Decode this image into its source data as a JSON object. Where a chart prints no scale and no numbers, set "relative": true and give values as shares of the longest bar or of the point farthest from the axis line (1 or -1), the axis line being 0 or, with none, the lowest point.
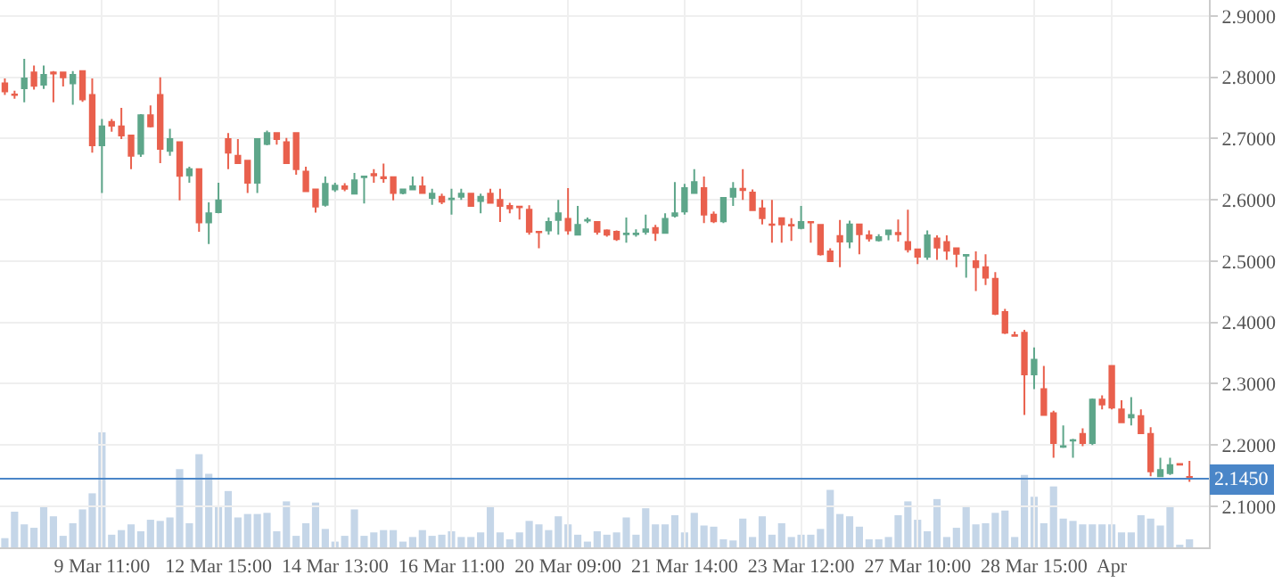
{
  "chart_data": [
    {
      "type": "candlestick",
      "grid": true,
      "categories": [
        null,
        null,
        null,
        null,
        null,
        null,
        null,
        null,
        null,
        null,
        "9 Mar 11:00",
        null,
        null,
        null,
        null,
        null,
        null,
        null,
        null,
        null,
        null,
        null,
        "12 Mar 15:00",
        null,
        null,
        null,
        null,
        null,
        null,
        null,
        null,
        null,
        null,
        null,
        "14 Mar 13:00",
        null,
        null,
        null,
        null,
        null,
        null,
        null,
        null,
        null,
        null,
        null,
        "16 Mar 11:00",
        null,
        null,
        null,
        null,
        null,
        null,
        null,
        null,
        null,
        null,
        null,
        "20 Mar 09:00",
        null,
        null,
        null,
        null,
        null,
        null,
        null,
        null,
        null,
        null,
        null,
        "21 Mar 14:00",
        null,
        null,
        null,
        null,
        null,
        null,
        null,
        null,
        null,
        null,
        null,
        "23 Mar 12:00",
        null,
        null,
        null,
        null,
        null,
        null,
        null,
        null,
        null,
        null,
        null,
        "27 Mar 10:00",
        null,
        null,
        null,
        null,
        null,
        null,
        null,
        null,
        null,
        null,
        null,
        "28 Mar 15:00",
        null,
        null,
        null,
        null,
        null,
        null,
        null,
        "Apr",
        null,
        null,
        null,
        null,
        null,
        null,
        null,
        null
      ],
      "ohlc": [
        [
          2.79,
          2.798,
          2.771,
          2.777
        ],
        [
          2.772,
          2.778,
          2.765,
          2.771
        ],
        [
          2.782,
          2.83,
          2.759,
          2.798
        ],
        [
          2.808,
          2.819,
          2.78,
          2.786
        ],
        [
          2.788,
          2.819,
          2.781,
          2.804
        ],
        [
          2.808,
          2.81,
          2.759,
          2.806
        ],
        [
          2.808,
          2.808,
          2.785,
          2.8
        ],
        [
          2.79,
          2.81,
          2.755,
          2.804
        ],
        [
          2.81,
          2.81,
          2.76,
          2.764
        ],
        [
          2.771,
          2.798,
          2.677,
          2.689
        ],
        [
          2.689,
          2.732,
          2.611,
          2.72
        ],
        [
          2.727,
          2.732,
          2.711,
          2.721
        ],
        [
          2.72,
          2.75,
          2.699,
          2.705
        ],
        [
          2.705,
          2.706,
          2.65,
          2.672
        ],
        [
          2.675,
          2.74,
          2.67,
          2.738
        ],
        [
          2.738,
          2.754,
          2.718,
          2.72
        ],
        [
          2.771,
          2.8,
          2.66,
          2.683
        ],
        [
          2.68,
          2.716,
          2.672,
          2.699
        ],
        [
          2.694,
          2.695,
          2.599,
          2.639
        ],
        [
          2.64,
          2.654,
          2.628,
          2.65
        ],
        [
          2.65,
          2.65,
          2.548,
          2.563
        ],
        [
          2.563,
          2.596,
          2.528,
          2.578
        ],
        [
          2.58,
          2.628,
          2.578,
          2.599
        ],
        [
          2.699,
          2.709,
          2.65,
          2.677
        ],
        [
          2.672,
          2.699,
          2.659,
          2.66
        ],
        [
          2.664,
          2.665,
          2.611,
          2.628
        ],
        [
          2.628,
          2.7,
          2.611,
          2.699
        ],
        [
          2.691,
          2.713,
          2.689,
          2.709
        ],
        [
          2.709,
          2.71,
          2.69,
          2.699
        ],
        [
          2.694,
          2.701,
          2.659,
          2.66
        ],
        [
          2.709,
          2.71,
          2.641,
          2.65
        ],
        [
          2.646,
          2.654,
          2.613,
          2.614
        ],
        [
          2.617,
          2.618,
          2.579,
          2.589
        ],
        [
          2.592,
          2.638,
          2.589,
          2.626
        ],
        [
          2.617,
          2.628,
          2.613,
          2.623
        ],
        [
          2.622,
          2.627,
          2.614,
          2.618
        ],
        [
          2.61,
          2.644,
          2.61,
          2.632
        ],
        [
          2.637,
          2.638,
          2.594,
          2.638
        ],
        [
          2.642,
          2.65,
          2.628,
          2.64
        ],
        [
          2.637,
          2.659,
          2.628,
          2.635
        ],
        [
          2.637,
          2.638,
          2.599,
          2.611
        ],
        [
          2.611,
          2.618,
          2.609,
          2.617
        ],
        [
          2.617,
          2.638,
          2.617,
          2.622
        ],
        [
          2.622,
          2.638,
          2.61,
          2.611
        ],
        [
          2.603,
          2.618,
          2.592,
          2.61
        ],
        [
          2.605,
          2.61,
          2.593,
          2.597
        ],
        [
          2.601,
          2.618,
          2.576,
          2.602
        ],
        [
          2.605,
          2.618,
          2.6,
          2.61
        ],
        [
          2.61,
          2.61,
          2.589,
          2.59
        ],
        [
          2.598,
          2.61,
          2.578,
          2.605
        ],
        [
          2.61,
          2.618,
          2.594,
          2.595
        ],
        [
          2.6,
          2.618,
          2.564,
          2.59
        ],
        [
          2.59,
          2.595,
          2.578,
          2.586
        ],
        [
          2.589,
          2.589,
          2.568,
          2.588
        ],
        [
          2.584,
          2.591,
          2.543,
          2.548
        ],
        [
          2.548,
          2.548,
          2.521,
          2.547
        ],
        [
          2.55,
          2.571,
          2.543,
          2.564
        ],
        [
          2.567,
          2.6,
          2.543,
          2.578
        ],
        [
          2.569,
          2.619,
          2.543,
          2.55
        ],
        [
          2.543,
          2.59,
          2.542,
          2.559
        ],
        [
          2.566,
          2.571,
          2.562,
          2.567
        ],
        [
          2.564,
          2.564,
          2.543,
          2.548
        ],
        [
          2.55,
          2.552,
          2.54,
          2.543
        ],
        [
          2.548,
          2.55,
          2.533,
          2.536
        ],
        [
          2.544,
          2.571,
          2.53,
          2.545
        ],
        [
          2.544,
          2.552,
          2.54,
          2.545
        ],
        [
          2.548,
          2.576,
          2.543,
          2.552
        ],
        [
          2.554,
          2.559,
          2.533,
          2.546
        ],
        [
          2.546,
          2.578,
          2.545,
          2.569
        ],
        [
          2.574,
          2.629,
          2.571,
          2.578
        ],
        [
          2.581,
          2.626,
          2.576,
          2.619
        ],
        [
          2.611,
          2.65,
          2.61,
          2.629
        ],
        [
          2.619,
          2.638,
          2.562,
          2.576
        ],
        [
          2.576,
          2.581,
          2.562,
          2.565
        ],
        [
          2.565,
          2.604,
          2.562,
          2.603
        ],
        [
          2.605,
          2.629,
          2.59,
          2.618
        ],
        [
          2.618,
          2.65,
          2.6,
          2.616
        ],
        [
          2.612,
          2.617,
          2.582,
          2.583
        ],
        [
          2.586,
          2.6,
          2.56,
          2.57
        ],
        [
          2.56,
          2.6,
          2.53,
          2.559
        ],
        [
          2.57,
          2.57,
          2.53,
          2.56
        ],
        [
          2.559,
          2.57,
          2.533,
          2.558
        ],
        [
          2.554,
          2.59,
          2.552,
          2.564
        ],
        [
          2.564,
          2.564,
          2.53,
          2.563
        ],
        [
          2.559,
          2.559,
          2.509,
          2.511
        ],
        [
          2.516,
          2.521,
          2.499,
          2.5
        ],
        [
          2.541,
          2.567,
          2.49,
          2.532
        ],
        [
          2.532,
          2.566,
          2.521,
          2.56
        ],
        [
          2.56,
          2.56,
          2.511,
          2.544
        ],
        [
          2.542,
          2.55,
          2.532,
          2.537
        ],
        [
          2.534,
          2.544,
          2.532,
          2.539
        ],
        [
          2.544,
          2.55,
          2.534,
          2.55
        ],
        [
          2.546,
          2.568,
          2.532,
          2.544
        ],
        [
          2.531,
          2.584,
          2.514,
          2.519
        ],
        [
          2.519,
          2.519,
          2.495,
          2.507
        ],
        [
          2.507,
          2.55,
          2.502,
          2.542
        ],
        [
          2.537,
          2.542,
          2.502,
          2.522
        ],
        [
          2.531,
          2.542,
          2.502,
          2.517
        ],
        [
          2.521,
          2.521,
          2.49,
          2.512
        ],
        [
          2.509,
          2.511,
          2.473,
          2.51
        ],
        [
          2.5,
          2.516,
          2.451,
          2.49
        ],
        [
          2.49,
          2.511,
          2.461,
          2.473
        ],
        [
          2.471,
          2.482,
          2.412,
          2.414
        ],
        [
          2.417,
          2.422,
          2.381,
          2.383
        ],
        [
          2.379,
          2.385,
          2.377,
          2.378
        ],
        [
          2.383,
          2.388,
          2.249,
          2.315
        ],
        [
          2.315,
          2.359,
          2.291,
          2.339
        ],
        [
          2.291,
          2.329,
          2.248,
          2.249
        ],
        [
          2.252,
          2.256,
          2.179,
          2.203
        ],
        [
          2.197,
          2.232,
          2.195,
          2.198
        ],
        [
          2.207,
          2.21,
          2.179,
          2.208
        ],
        [
          2.218,
          2.227,
          2.198,
          2.203
        ],
        [
          2.203,
          2.276,
          2.2,
          2.274
        ],
        [
          2.274,
          2.281,
          2.258,
          2.266
        ],
        [
          2.329,
          2.329,
          2.258,
          2.261
        ],
        [
          2.258,
          2.273,
          2.237,
          2.237
        ],
        [
          2.245,
          2.278,
          2.232,
          2.249
        ],
        [
          2.247,
          2.258,
          2.219,
          2.219
        ],
        [
          2.218,
          2.229,
          2.149,
          2.157
        ],
        [
          2.149,
          2.179,
          2.149,
          2.159
        ],
        [
          2.154,
          2.179,
          2.151,
          2.167
        ],
        [
          2.169,
          2.17,
          2.168,
          2.168
        ],
        [
          2.148,
          2.174,
          2.14,
          2.145
        ]
      ],
      "ylim": [
        2.033,
        2.926
      ],
      "yticks": [
        {
          "value": 2.1,
          "label": "2.1000"
        },
        {
          "value": 2.2,
          "label": "2.2000"
        },
        {
          "value": 2.3,
          "label": "2.3000"
        },
        {
          "value": 2.4,
          "label": "2.4000"
        },
        {
          "value": 2.5,
          "label": "2.5000"
        },
        {
          "value": 2.6,
          "label": "2.6000"
        },
        {
          "value": 2.7,
          "label": "2.7000"
        },
        {
          "value": 2.8,
          "label": "2.8000"
        },
        {
          "value": 2.9,
          "label": "2.9000"
        }
      ],
      "ref_lines": [
        {
          "axis": "y",
          "value": 2.145,
          "label": "2.1450",
          "color": "#4a86c8"
        }
      ]
    },
    {
      "type": "bar",
      "relative": true,
      "color": "#c5d6e8",
      "categories": [
        null,
        null,
        null,
        null,
        null,
        null,
        null,
        null,
        null,
        null,
        null,
        null,
        null,
        null,
        null,
        null,
        null,
        null,
        null,
        null,
        null,
        null,
        null,
        null,
        null,
        null,
        null,
        null,
        null,
        null,
        null,
        null,
        null,
        null,
        null,
        null,
        null,
        null,
        null,
        null,
        null,
        null,
        null,
        null,
        null,
        null,
        null,
        null,
        null,
        null,
        null,
        null,
        null,
        null,
        null,
        null,
        null,
        null,
        null,
        null,
        null,
        null,
        null,
        null,
        null,
        null,
        null,
        null,
        null,
        null,
        null,
        null,
        null,
        null,
        null,
        null,
        null,
        null,
        null,
        null,
        null,
        null,
        null,
        null,
        null,
        null,
        null,
        null,
        null,
        null,
        null,
        null,
        null,
        null,
        null,
        null,
        null,
        null,
        null,
        null,
        null,
        null,
        null,
        null,
        null,
        null,
        null,
        null,
        null,
        null,
        null,
        null,
        null,
        null,
        null,
        null,
        null,
        null,
        null,
        null,
        null,
        null,
        null
      ],
      "values": [
        0.08,
        0.31,
        0.2,
        0.17,
        0.36,
        0.27,
        0.1,
        0.21,
        0.33,
        0.47,
        1,
        0.11,
        0.15,
        0.2,
        0.14,
        0.24,
        0.23,
        0.26,
        0.68,
        0.21,
        0.81,
        0.64,
        0.36,
        0.49,
        0.26,
        0.29,
        0.29,
        0.3,
        0.14,
        0.4,
        0.1,
        0.21,
        0.39,
        0.16,
        0.05,
        0.1,
        0.33,
        0.1,
        0.13,
        0.15,
        0.15,
        0.05,
        0.09,
        0.15,
        0.1,
        0.11,
        0.14,
        0.09,
        0.09,
        0.13,
        0.36,
        0.13,
        0.07,
        0.13,
        0.23,
        0.2,
        0.15,
        0.27,
        0.2,
        0.11,
        0.05,
        0.14,
        0.11,
        0.13,
        0.26,
        0.11,
        0.34,
        0.2,
        0.2,
        0.28,
        0.13,
        0.3,
        0.19,
        0.18,
        0.07,
        0.06,
        0.25,
        0.09,
        0.27,
        0.11,
        0.21,
        0.09,
        0.11,
        0.11,
        0.16,
        0.5,
        0.29,
        0.27,
        0.18,
        0.07,
        0.07,
        0.09,
        0.28,
        0.4,
        0.24,
        0.14,
        0.42,
        0.09,
        0.17,
        0.36,
        0.2,
        0.21,
        0.3,
        0.32,
        0.09,
        0.63,
        0.44,
        0.21,
        0.53,
        0.25,
        0.23,
        0.2,
        0.2,
        0.2,
        0.2,
        0.13,
        0.13,
        0.28,
        0.25,
        0.19,
        0.36,
        0.02,
        0.07
      ]
    }
  ]
}
